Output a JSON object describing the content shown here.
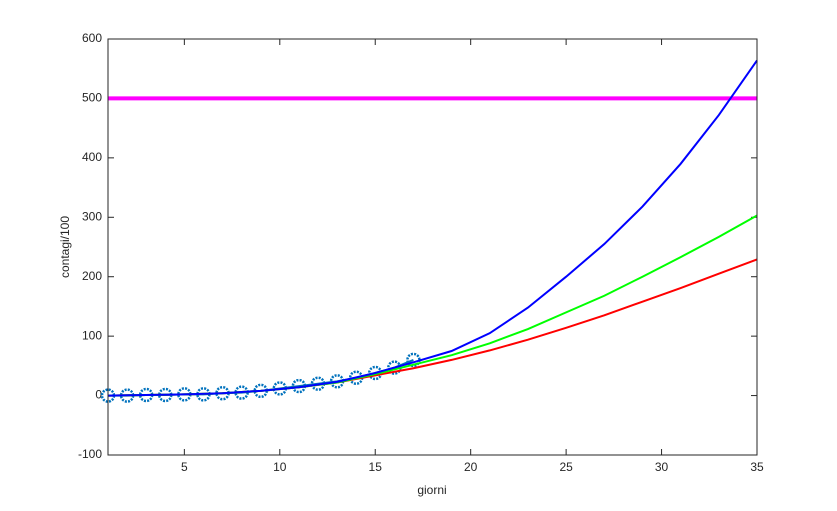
{
  "chart_data": {
    "type": "line",
    "xlabel": "giorni",
    "ylabel": "contagi/100",
    "xlim": [
      1,
      35
    ],
    "xticks": [
      5,
      10,
      15,
      20,
      25,
      30,
      35
    ],
    "ylim": [
      -100,
      600
    ],
    "yticks": [
      -100,
      0,
      100,
      200,
      300,
      400,
      500,
      600
    ],
    "series": [
      {
        "color": "#ff00ff",
        "marker": "none",
        "x": [
          1,
          35
        ],
        "values": [
          500,
          500
        ]
      },
      {
        "color": "#0072bd",
        "marker": "o",
        "x": [
          1,
          2,
          3,
          4,
          5,
          6,
          7,
          8,
          9,
          10,
          11,
          12,
          13,
          14,
          15,
          16,
          17
        ],
        "values": [
          0,
          0,
          1,
          1,
          2,
          2,
          4,
          5,
          8,
          12,
          16,
          20,
          24,
          30,
          38,
          47,
          60
        ]
      },
      {
        "color": "#ff0000",
        "marker": "none",
        "x": [
          1,
          3,
          5,
          7,
          9,
          11,
          13,
          15,
          17,
          19,
          21,
          23,
          25,
          27,
          29,
          31,
          33,
          35
        ],
        "values": [
          0,
          1,
          2,
          4,
          8,
          14,
          22,
          34,
          46,
          60,
          76,
          94,
          114,
          135,
          158,
          181,
          205,
          229
        ]
      },
      {
        "color": "#00ff00",
        "marker": "none",
        "x": [
          1,
          3,
          5,
          7,
          9,
          11,
          13,
          15,
          17,
          19,
          21,
          23,
          25,
          27,
          29,
          31,
          33,
          35
        ],
        "values": [
          0,
          1,
          2,
          4,
          8,
          14,
          22,
          36,
          52,
          68,
          88,
          112,
          140,
          168,
          200,
          233,
          267,
          303
        ]
      },
      {
        "color": "#0000ff",
        "marker": "none",
        "x": [
          1,
          3,
          5,
          7,
          9,
          11,
          13,
          15,
          17,
          19,
          21,
          23,
          25,
          27,
          29,
          31,
          33,
          35
        ],
        "values": [
          0,
          1,
          2,
          4,
          8,
          14,
          23,
          38,
          56,
          75,
          105,
          148,
          200,
          255,
          318,
          390,
          472,
          564
        ]
      }
    ]
  }
}
